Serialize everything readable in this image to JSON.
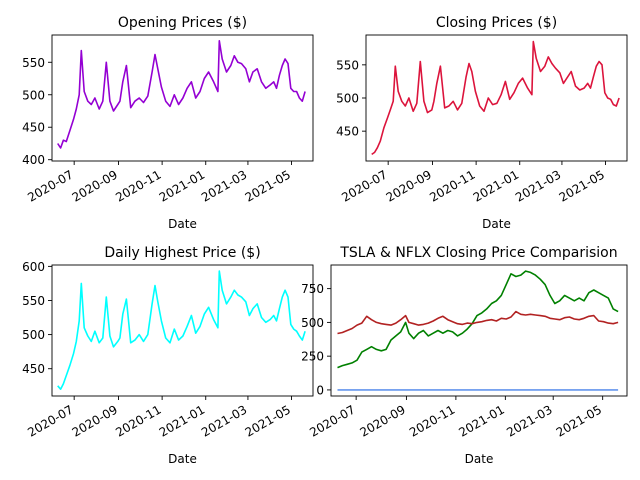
{
  "chart_data": [
    {
      "type": "line",
      "title": "Opening Prices ($)",
      "xlabel": "Date",
      "ylabel": "",
      "xlim": [
        "2020-05-31",
        "2021-05-31"
      ],
      "ylim": [
        398,
        592
      ],
      "yticks": [
        400,
        450,
        500,
        550
      ],
      "xticks": [
        "2020-07",
        "2020-09",
        "2020-11",
        "2021-01",
        "2021-03",
        "2021-05"
      ],
      "grid": false,
      "series": [
        {
          "color": "#9400d3",
          "x": [
            "2020-06-08",
            "2020-06-12",
            "2020-06-16",
            "2020-06-20",
            "2020-06-25",
            "2020-06-30",
            "2020-07-04",
            "2020-07-08",
            "2020-07-11",
            "2020-07-15",
            "2020-07-20",
            "2020-07-25",
            "2020-07-30",
            "2020-08-05",
            "2020-08-10",
            "2020-08-15",
            "2020-08-20",
            "2020-08-25",
            "2020-08-31",
            "2020-09-03",
            "2020-09-07",
            "2020-09-12",
            "2020-09-18",
            "2020-09-24",
            "2020-09-30",
            "2020-10-06",
            "2020-10-12",
            "2020-10-18",
            "2020-10-22",
            "2020-10-26",
            "2020-10-31",
            "2020-11-06",
            "2020-11-12",
            "2020-11-18",
            "2020-11-24",
            "2020-11-30",
            "2020-12-06",
            "2020-12-12",
            "2020-12-18",
            "2020-12-24",
            "2020-12-30",
            "2021-01-05",
            "2021-01-12",
            "2021-01-18",
            "2021-01-20",
            "2021-01-24",
            "2021-01-30",
            "2021-02-05",
            "2021-02-10",
            "2021-02-15",
            "2021-02-20",
            "2021-02-26",
            "2021-03-03",
            "2021-03-08",
            "2021-03-14",
            "2021-03-20",
            "2021-03-26",
            "2021-04-01",
            "2021-04-06",
            "2021-04-10",
            "2021-04-14",
            "2021-04-18",
            "2021-04-22",
            "2021-04-26",
            "2021-04-30",
            "2021-05-04",
            "2021-05-08",
            "2021-05-12",
            "2021-05-16",
            "2021-05-20"
          ],
          "values": [
            425,
            418,
            430,
            428,
            445,
            462,
            478,
            500,
            568,
            505,
            490,
            485,
            495,
            478,
            490,
            550,
            490,
            475,
            485,
            490,
            520,
            545,
            480,
            490,
            495,
            488,
            498,
            535,
            562,
            540,
            512,
            490,
            482,
            500,
            485,
            495,
            510,
            520,
            495,
            505,
            525,
            535,
            520,
            505,
            583,
            555,
            535,
            545,
            560,
            550,
            548,
            540,
            520,
            535,
            540,
            520,
            510,
            515,
            520,
            510,
            530,
            545,
            555,
            548,
            510,
            505,
            505,
            495,
            490,
            505
          ]
        }
      ]
    },
    {
      "type": "line",
      "title": "Closing Prices ($)",
      "xlabel": "Date",
      "ylabel": "",
      "xlim": [
        "2020-05-31",
        "2021-05-31"
      ],
      "ylim": [
        405,
        595
      ],
      "yticks": [
        450,
        500,
        550
      ],
      "xticks": [
        "2020-07",
        "2020-09",
        "2020-11",
        "2021-01",
        "2021-03",
        "2021-05"
      ],
      "grid": false,
      "series": [
        {
          "color": "#dc143c",
          "x": [
            "2020-06-08",
            "2020-06-12",
            "2020-06-16",
            "2020-06-20",
            "2020-06-25",
            "2020-06-30",
            "2020-07-04",
            "2020-07-08",
            "2020-07-11",
            "2020-07-15",
            "2020-07-20",
            "2020-07-25",
            "2020-07-30",
            "2020-08-05",
            "2020-08-10",
            "2020-08-15",
            "2020-08-20",
            "2020-08-25",
            "2020-08-31",
            "2020-09-03",
            "2020-09-07",
            "2020-09-12",
            "2020-09-18",
            "2020-09-24",
            "2020-09-30",
            "2020-10-06",
            "2020-10-12",
            "2020-10-18",
            "2020-10-22",
            "2020-10-26",
            "2020-10-31",
            "2020-11-06",
            "2020-11-12",
            "2020-11-18",
            "2020-11-24",
            "2020-11-30",
            "2020-12-06",
            "2020-12-12",
            "2020-12-18",
            "2020-12-24",
            "2020-12-30",
            "2021-01-05",
            "2021-01-12",
            "2021-01-18",
            "2021-01-20",
            "2021-01-24",
            "2021-01-30",
            "2021-02-05",
            "2021-02-10",
            "2021-02-15",
            "2021-02-20",
            "2021-02-26",
            "2021-03-03",
            "2021-03-08",
            "2021-03-14",
            "2021-03-20",
            "2021-03-26",
            "2021-04-01",
            "2021-04-06",
            "2021-04-10",
            "2021-04-14",
            "2021-04-18",
            "2021-04-22",
            "2021-04-26",
            "2021-04-30",
            "2021-05-04",
            "2021-05-08",
            "2021-05-12",
            "2021-05-16",
            "2021-05-20"
          ],
          "values": [
            415,
            418,
            425,
            435,
            455,
            470,
            482,
            495,
            548,
            510,
            495,
            488,
            500,
            480,
            492,
            555,
            495,
            478,
            482,
            495,
            522,
            548,
            485,
            488,
            495,
            482,
            492,
            532,
            552,
            540,
            510,
            488,
            480,
            500,
            490,
            492,
            505,
            525,
            498,
            508,
            522,
            530,
            515,
            505,
            585,
            560,
            540,
            548,
            562,
            552,
            545,
            538,
            522,
            530,
            540,
            518,
            512,
            515,
            522,
            515,
            532,
            548,
            555,
            550,
            508,
            500,
            498,
            490,
            488,
            500
          ]
        }
      ]
    },
    {
      "type": "line",
      "title": "Daily Highest Price ($)",
      "xlabel": "Date",
      "ylabel": "",
      "xlim": [
        "2020-05-31",
        "2021-05-31"
      ],
      "ylim": [
        410,
        602
      ],
      "yticks": [
        450,
        500,
        550,
        600
      ],
      "xticks": [
        "2020-07",
        "2020-09",
        "2020-11",
        "2021-01",
        "2021-03",
        "2021-05"
      ],
      "grid": false,
      "series": [
        {
          "color": "#00ffff",
          "x": [
            "2020-06-08",
            "2020-06-12",
            "2020-06-16",
            "2020-06-20",
            "2020-06-25",
            "2020-06-30",
            "2020-07-04",
            "2020-07-08",
            "2020-07-11",
            "2020-07-15",
            "2020-07-20",
            "2020-07-25",
            "2020-07-30",
            "2020-08-05",
            "2020-08-10",
            "2020-08-15",
            "2020-08-20",
            "2020-08-25",
            "2020-08-31",
            "2020-09-03",
            "2020-09-07",
            "2020-09-12",
            "2020-09-18",
            "2020-09-24",
            "2020-09-30",
            "2020-10-06",
            "2020-10-12",
            "2020-10-18",
            "2020-10-22",
            "2020-10-26",
            "2020-10-31",
            "2020-11-06",
            "2020-11-12",
            "2020-11-18",
            "2020-11-24",
            "2020-11-30",
            "2020-12-06",
            "2020-12-12",
            "2020-12-18",
            "2020-12-24",
            "2020-12-30",
            "2021-01-05",
            "2021-01-12",
            "2021-01-18",
            "2021-01-20",
            "2021-01-24",
            "2021-01-30",
            "2021-02-05",
            "2021-02-10",
            "2021-02-15",
            "2021-02-20",
            "2021-02-26",
            "2021-03-03",
            "2021-03-08",
            "2021-03-14",
            "2021-03-20",
            "2021-03-26",
            "2021-04-01",
            "2021-04-06",
            "2021-04-10",
            "2021-04-14",
            "2021-04-18",
            "2021-04-22",
            "2021-04-26",
            "2021-04-30",
            "2021-05-04",
            "2021-05-08",
            "2021-05-12",
            "2021-05-16",
            "2021-05-20"
          ],
          "values": [
            425,
            420,
            428,
            440,
            455,
            472,
            490,
            520,
            575,
            510,
            498,
            490,
            505,
            488,
            495,
            555,
            498,
            482,
            490,
            495,
            530,
            552,
            488,
            492,
            500,
            490,
            500,
            545,
            572,
            548,
            520,
            495,
            488,
            508,
            492,
            498,
            512,
            528,
            502,
            512,
            530,
            540,
            522,
            510,
            593,
            565,
            545,
            555,
            565,
            558,
            555,
            548,
            528,
            538,
            545,
            525,
            518,
            522,
            528,
            520,
            538,
            555,
            565,
            555,
            515,
            508,
            505,
            498,
            492,
            505
          ]
        }
      ]
    },
    {
      "type": "line",
      "title": "TSLA & NFLX Closing Price Comparision",
      "xlabel": "Date",
      "ylabel": "",
      "xlim": [
        "2020-05-31",
        "2021-05-31"
      ],
      "ylim": [
        -45,
        925
      ],
      "yticks": [
        0,
        250,
        500,
        750
      ],
      "xticks": [
        "2020-07",
        "2020-09",
        "2020-11",
        "2021-01",
        "2021-03",
        "2021-05"
      ],
      "grid": false,
      "series": [
        {
          "color": "#008000",
          "x": [
            "2020-06-08",
            "2020-06-14",
            "2020-06-20",
            "2020-06-26",
            "2020-07-02",
            "2020-07-08",
            "2020-07-14",
            "2020-07-20",
            "2020-07-26",
            "2020-08-01",
            "2020-08-07",
            "2020-08-13",
            "2020-08-19",
            "2020-08-25",
            "2020-08-31",
            "2020-09-04",
            "2020-09-10",
            "2020-09-16",
            "2020-09-22",
            "2020-09-28",
            "2020-10-04",
            "2020-10-10",
            "2020-10-16",
            "2020-10-22",
            "2020-10-28",
            "2020-11-03",
            "2020-11-09",
            "2020-11-15",
            "2020-11-21",
            "2020-11-27",
            "2020-12-03",
            "2020-12-09",
            "2020-12-15",
            "2020-12-21",
            "2020-12-27",
            "2021-01-02",
            "2021-01-08",
            "2021-01-14",
            "2021-01-20",
            "2021-01-26",
            "2021-02-01",
            "2021-02-07",
            "2021-02-13",
            "2021-02-19",
            "2021-02-25",
            "2021-03-03",
            "2021-03-09",
            "2021-03-15",
            "2021-03-21",
            "2021-03-27",
            "2021-04-02",
            "2021-04-08",
            "2021-04-14",
            "2021-04-20",
            "2021-04-26",
            "2021-05-02",
            "2021-05-08",
            "2021-05-14",
            "2021-05-20"
          ],
          "values": [
            165,
            180,
            190,
            200,
            220,
            280,
            300,
            320,
            300,
            290,
            300,
            370,
            400,
            430,
            500,
            420,
            380,
            420,
            440,
            400,
            420,
            440,
            420,
            440,
            430,
            400,
            420,
            450,
            490,
            550,
            570,
            600,
            640,
            660,
            700,
            780,
            860,
            840,
            850,
            880,
            870,
            850,
            820,
            780,
            700,
            640,
            660,
            700,
            680,
            660,
            680,
            660,
            720,
            740,
            720,
            700,
            680,
            600,
            580
          ]
        },
        {
          "color": "#b22222",
          "x": [
            "2020-06-08",
            "2020-06-14",
            "2020-06-20",
            "2020-06-26",
            "2020-07-02",
            "2020-07-08",
            "2020-07-14",
            "2020-07-20",
            "2020-07-26",
            "2020-08-01",
            "2020-08-07",
            "2020-08-13",
            "2020-08-19",
            "2020-08-25",
            "2020-08-31",
            "2020-09-04",
            "2020-09-10",
            "2020-09-16",
            "2020-09-22",
            "2020-09-28",
            "2020-10-04",
            "2020-10-10",
            "2020-10-16",
            "2020-10-22",
            "2020-10-28",
            "2020-11-03",
            "2020-11-09",
            "2020-11-15",
            "2020-11-21",
            "2020-11-27",
            "2020-12-03",
            "2020-12-09",
            "2020-12-15",
            "2020-12-21",
            "2020-12-27",
            "2021-01-02",
            "2021-01-08",
            "2021-01-14",
            "2021-01-20",
            "2021-01-26",
            "2021-02-01",
            "2021-02-07",
            "2021-02-13",
            "2021-02-19",
            "2021-02-25",
            "2021-03-03",
            "2021-03-09",
            "2021-03-15",
            "2021-03-21",
            "2021-03-27",
            "2021-04-02",
            "2021-04-08",
            "2021-04-14",
            "2021-04-20",
            "2021-04-26",
            "2021-05-02",
            "2021-05-08",
            "2021-05-14",
            "2021-05-20"
          ],
          "values": [
            418,
            425,
            440,
            455,
            480,
            495,
            545,
            520,
            500,
            490,
            485,
            480,
            495,
            520,
            550,
            500,
            490,
            480,
            485,
            495,
            510,
            530,
            545,
            520,
            505,
            490,
            485,
            495,
            490,
            500,
            505,
            515,
            520,
            510,
            530,
            525,
            540,
            580,
            560,
            555,
            560,
            555,
            550,
            545,
            530,
            525,
            520,
            535,
            540,
            525,
            520,
            530,
            545,
            550,
            510,
            505,
            495,
            490,
            500
          ]
        },
        {
          "color": "#6495ed",
          "x": [
            "2020-06-08",
            "2021-05-20"
          ],
          "values": [
            0,
            0
          ]
        }
      ]
    }
  ]
}
